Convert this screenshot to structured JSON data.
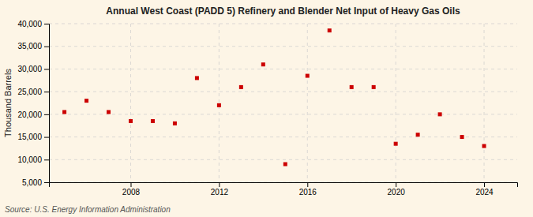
{
  "chart_data": {
    "type": "scatter",
    "title": "Annual West Coast (PADD 5) Refinery and Blender Net Input of Heavy Gas Oils",
    "ylabel": "Thousand Barrels",
    "annotations": [
      "Source: U.S. Energy Information Administration"
    ],
    "x": [
      2005,
      2006,
      2007,
      2008,
      2009,
      2010,
      2011,
      2012,
      2013,
      2014,
      2015,
      2016,
      2017,
      2018,
      2019,
      2020,
      2021,
      2022,
      2023,
      2024
    ],
    "values": [
      20500,
      23000,
      20500,
      18500,
      18500,
      18000,
      28000,
      22000,
      26000,
      31000,
      9000,
      28500,
      38500,
      26000,
      26000,
      13500,
      15500,
      20000,
      15000,
      13000
    ],
    "color": "#cc0000",
    "marker": "square",
    "xlim": [
      2004.3,
      2025.5
    ],
    "xticks": [
      2008,
      2012,
      2016,
      2020,
      2024
    ],
    "ylim": [
      5000,
      40000
    ],
    "yticks": [
      {
        "value": 5000,
        "label": "5,000"
      },
      {
        "value": 10000,
        "label": "10,000"
      },
      {
        "value": 15000,
        "label": "15,000"
      },
      {
        "value": 20000,
        "label": "20,000"
      },
      {
        "value": 25000,
        "label": "25,000"
      },
      {
        "value": 30000,
        "label": "30,000"
      },
      {
        "value": 35000,
        "label": "35,000"
      },
      {
        "value": 40000,
        "label": "40,000"
      }
    ],
    "grid": true
  }
}
